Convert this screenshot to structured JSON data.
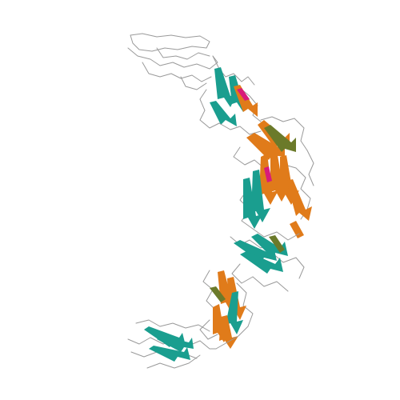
{
  "figure": {
    "subject": "protein-ribbon-structure",
    "background_color": "#ffffff",
    "colors": {
      "coil": "#9a9a9a",
      "strand_a": "#1a9e8f",
      "strand_b": "#e07b1a",
      "strand_c": "#6b7a2a",
      "helix": "#d81b7a"
    }
  }
}
